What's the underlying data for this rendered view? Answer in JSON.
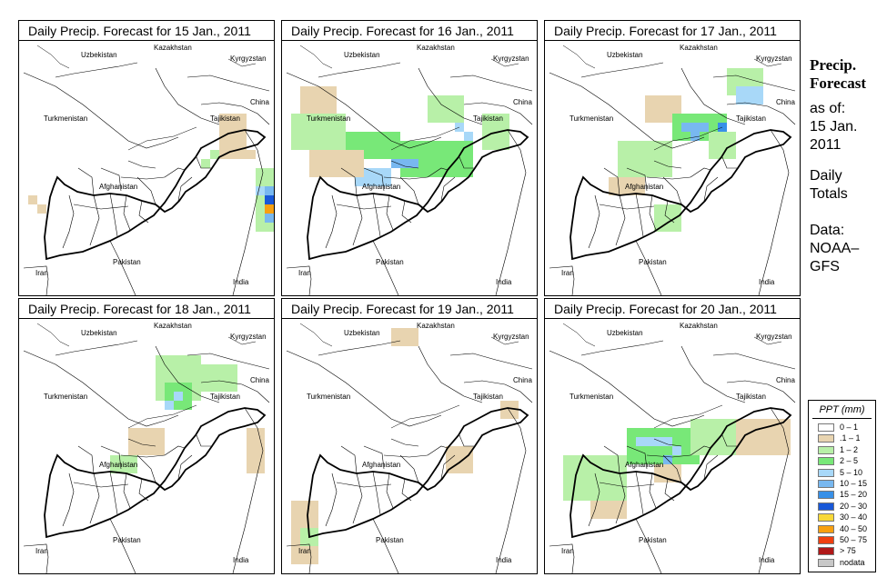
{
  "panels": [
    {
      "title": "Daily Precip. Forecast for  15 Jan., 2011"
    },
    {
      "title": "Daily Precip. Forecast for  16 Jan., 2011"
    },
    {
      "title": "Daily Precip. Forecast for  17 Jan., 2011"
    },
    {
      "title": "Daily Precip. Forecast for  18 Jan., 2011"
    },
    {
      "title": "Daily Precip. Forecast for  19 Jan., 2011"
    },
    {
      "title": "Daily Precip. Forecast for  20 Jan., 2011"
    }
  ],
  "map_labels": {
    "kazakhstan": "Kazakhstan",
    "uzbekistan": "Uzbekistan",
    "kyrgyzstan": "Kyrgyzstan",
    "china": "China",
    "turkmenistan": "Turkmenistan",
    "tajikistan": "Tajikistan",
    "afghanistan": "Afghanistan",
    "iran": "Iran",
    "pakistan": "Pakistan",
    "india": "India"
  },
  "side": {
    "title_line1": "Precip.",
    "title_line2": "Forecast",
    "asof": "as of:",
    "date_line1": "15 Jan.",
    "date_line2": "2011",
    "totals_line1": "Daily",
    "totals_line2": "Totals",
    "data_line1": "Data:",
    "data_line2": "NOAA–",
    "data_line3": "GFS"
  },
  "legend": {
    "title": "PPT (mm)",
    "items": [
      {
        "label": "0 – 1",
        "color": "#ffffff"
      },
      {
        "label": ".1 – 1",
        "color": "#e8d4b0"
      },
      {
        "label": "1 – 2",
        "color": "#b8f0a8"
      },
      {
        "label": "2 – 5",
        "color": "#78e878"
      },
      {
        "label": "5 – 10",
        "color": "#a8d8f8"
      },
      {
        "label": "10 – 15",
        "color": "#78b8f0"
      },
      {
        "label": "15 – 20",
        "color": "#3890e8"
      },
      {
        "label": "20 – 30",
        "color": "#1858d8"
      },
      {
        "label": "30 – 40",
        "color": "#f8d838"
      },
      {
        "label": "40 – 50",
        "color": "#f8a010"
      },
      {
        "label": "50 – 75",
        "color": "#f04010"
      },
      {
        "label": "> 75",
        "color": "#b01818"
      },
      {
        "label": "nodata",
        "color": "#c8c8c8"
      }
    ]
  }
}
